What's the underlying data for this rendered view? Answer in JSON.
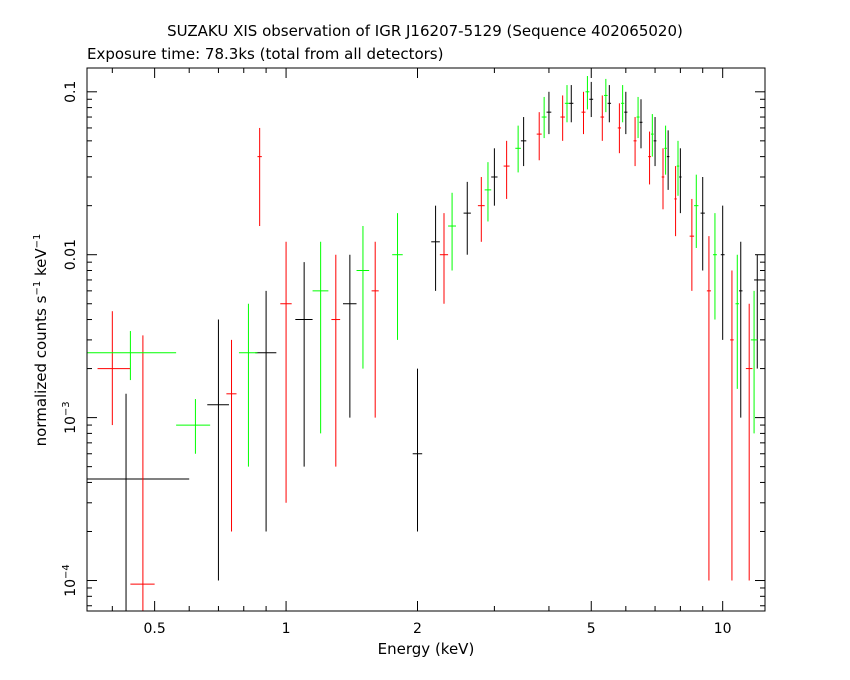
{
  "chart_data": {
    "type": "scatter",
    "title": "SUZAKU XIS observation of IGR J16207-5129 (Sequence 402065020)",
    "subtitle": "Exposure time: 78.3ks (total from all detectors)",
    "xlabel": "Energy (keV)",
    "ylabel": {
      "part1": "normalized counts s",
      "exp1": "−1",
      "part2": " keV",
      "exp2": "−1"
    },
    "xscale": "log",
    "yscale": "log",
    "xlim": [
      0.35,
      12.5
    ],
    "ylim": [
      6.5e-05,
      0.14
    ],
    "x_ticks": [
      {
        "value": 0.5,
        "label": "0.5"
      },
      {
        "value": 1,
        "label": "1"
      },
      {
        "value": 2,
        "label": "2"
      },
      {
        "value": 5,
        "label": "5"
      },
      {
        "value": 10,
        "label": "10"
      }
    ],
    "y_ticks": [
      {
        "value": 0.0001,
        "base": "10",
        "exp": "−4"
      },
      {
        "value": 0.001,
        "base": "10",
        "exp": "−3"
      },
      {
        "value": 0.01,
        "label": "0.01"
      },
      {
        "value": 0.1,
        "label": "0.1"
      }
    ],
    "grid": false,
    "legend": "none",
    "series": [
      {
        "color": "#000000",
        "points": [
          {
            "x": 0.43,
            "y": 0.00042,
            "xerr": [
              0.34,
              0.6
            ],
            "yerr": [
              4e-05,
              0.0014
            ]
          },
          {
            "x": 0.7,
            "y": 0.0012,
            "xerr": [
              0.66,
              0.74
            ],
            "yerr": [
              0.0001,
              0.004
            ]
          },
          {
            "x": 0.9,
            "y": 0.0025,
            "xerr": [
              0.85,
              0.95
            ],
            "yerr": [
              0.0002,
              0.006
            ]
          },
          {
            "x": 1.1,
            "y": 0.004,
            "xerr": [
              1.05,
              1.15
            ],
            "yerr": [
              0.0005,
              0.009
            ]
          },
          {
            "x": 1.4,
            "y": 0.005,
            "xerr": [
              1.35,
              1.45
            ],
            "yerr": [
              0.001,
              0.01
            ]
          },
          {
            "x": 2.0,
            "y": 0.0006,
            "xerr": [
              1.95,
              2.05
            ],
            "yerr": [
              0.0002,
              0.002
            ]
          },
          {
            "x": 2.2,
            "y": 0.012,
            "xerr": [
              2.15,
              2.25
            ],
            "yerr": [
              0.006,
              0.02
            ]
          },
          {
            "x": 2.6,
            "y": 0.018,
            "xerr": [
              2.55,
              2.65
            ],
            "yerr": [
              0.01,
              0.028
            ]
          },
          {
            "x": 3.0,
            "y": 0.03,
            "xerr": [
              2.95,
              3.05
            ],
            "yerr": [
              0.02,
              0.045
            ]
          },
          {
            "x": 3.5,
            "y": 0.05,
            "xerr": [
              3.45,
              3.55
            ],
            "yerr": [
              0.035,
              0.07
            ]
          },
          {
            "x": 4.0,
            "y": 0.075,
            "xerr": [
              3.95,
              4.05
            ],
            "yerr": [
              0.055,
              0.1
            ]
          },
          {
            "x": 4.5,
            "y": 0.085,
            "xerr": [
              4.45,
              4.55
            ],
            "yerr": [
              0.065,
              0.11
            ]
          },
          {
            "x": 5.0,
            "y": 0.09,
            "xerr": [
              4.95,
              5.05
            ],
            "yerr": [
              0.07,
              0.115
            ]
          },
          {
            "x": 5.5,
            "y": 0.085,
            "xerr": [
              5.45,
              5.55
            ],
            "yerr": [
              0.065,
              0.11
            ]
          },
          {
            "x": 6.0,
            "y": 0.075,
            "xerr": [
              5.95,
              6.05
            ],
            "yerr": [
              0.055,
              0.1
            ]
          },
          {
            "x": 6.5,
            "y": 0.065,
            "xerr": [
              6.45,
              6.55
            ],
            "yerr": [
              0.045,
              0.09
            ]
          },
          {
            "x": 7.0,
            "y": 0.05,
            "xerr": [
              6.95,
              7.05
            ],
            "yerr": [
              0.035,
              0.07
            ]
          },
          {
            "x": 7.5,
            "y": 0.04,
            "xerr": [
              7.45,
              7.55
            ],
            "yerr": [
              0.025,
              0.058
            ]
          },
          {
            "x": 8.0,
            "y": 0.03,
            "xerr": [
              7.95,
              8.05
            ],
            "yerr": [
              0.018,
              0.045
            ]
          },
          {
            "x": 9.0,
            "y": 0.018,
            "xerr": [
              8.9,
              9.1
            ],
            "yerr": [
              0.008,
              0.03
            ]
          },
          {
            "x": 10.0,
            "y": 0.01,
            "xerr": [
              9.9,
              10.1
            ],
            "yerr": [
              0.003,
              0.02
            ]
          },
          {
            "x": 11.0,
            "y": 0.006,
            "xerr": [
              10.9,
              11.1
            ],
            "yerr": [
              0.001,
              0.012
            ]
          },
          {
            "x": 12.0,
            "y": 0.007,
            "xerr": [
              11.8,
              12.2
            ],
            "yerr": [
              0.002,
              0.01
            ]
          }
        ]
      },
      {
        "color": "#ff0000",
        "points": [
          {
            "x": 0.4,
            "y": 0.002,
            "xerr": [
              0.37,
              0.44
            ],
            "yerr": [
              0.0009,
              0.0045
            ]
          },
          {
            "x": 0.47,
            "y": 9.5e-05,
            "xerr": [
              0.44,
              0.5
            ],
            "yerr": [
              4e-05,
              0.0032
            ]
          },
          {
            "x": 0.75,
            "y": 0.0014,
            "xerr": [
              0.73,
              0.77
            ],
            "yerr": [
              0.0002,
              0.003
            ]
          },
          {
            "x": 0.87,
            "y": 0.04,
            "xerr": [
              0.86,
              0.88
            ],
            "yerr": [
              0.015,
              0.06
            ]
          },
          {
            "x": 1.0,
            "y": 0.005,
            "xerr": [
              0.97,
              1.03
            ],
            "yerr": [
              0.0003,
              0.012
            ]
          },
          {
            "x": 1.3,
            "y": 0.004,
            "xerr": [
              1.27,
              1.33
            ],
            "yerr": [
              0.0005,
              0.01
            ]
          },
          {
            "x": 1.6,
            "y": 0.006,
            "xerr": [
              1.57,
              1.63
            ],
            "yerr": [
              0.001,
              0.012
            ]
          },
          {
            "x": 2.3,
            "y": 0.01,
            "xerr": [
              2.25,
              2.35
            ],
            "yerr": [
              0.005,
              0.018
            ]
          },
          {
            "x": 2.8,
            "y": 0.02,
            "xerr": [
              2.75,
              2.85
            ],
            "yerr": [
              0.012,
              0.03
            ]
          },
          {
            "x": 3.2,
            "y": 0.035,
            "xerr": [
              3.15,
              3.25
            ],
            "yerr": [
              0.022,
              0.05
            ]
          },
          {
            "x": 3.8,
            "y": 0.055,
            "xerr": [
              3.75,
              3.85
            ],
            "yerr": [
              0.038,
              0.075
            ]
          },
          {
            "x": 4.3,
            "y": 0.07,
            "xerr": [
              4.25,
              4.35
            ],
            "yerr": [
              0.05,
              0.095
            ]
          },
          {
            "x": 4.8,
            "y": 0.075,
            "xerr": [
              4.75,
              4.85
            ],
            "yerr": [
              0.055,
              0.1
            ]
          },
          {
            "x": 5.3,
            "y": 0.07,
            "xerr": [
              5.25,
              5.35
            ],
            "yerr": [
              0.05,
              0.095
            ]
          },
          {
            "x": 5.8,
            "y": 0.06,
            "xerr": [
              5.75,
              5.85
            ],
            "yerr": [
              0.042,
              0.085
            ]
          },
          {
            "x": 6.3,
            "y": 0.05,
            "xerr": [
              6.25,
              6.35
            ],
            "yerr": [
              0.035,
              0.07
            ]
          },
          {
            "x": 6.8,
            "y": 0.04,
            "xerr": [
              6.75,
              6.85
            ],
            "yerr": [
              0.027,
              0.057
            ]
          },
          {
            "x": 7.3,
            "y": 0.03,
            "xerr": [
              7.25,
              7.35
            ],
            "yerr": [
              0.019,
              0.045
            ]
          },
          {
            "x": 7.8,
            "y": 0.022,
            "xerr": [
              7.75,
              7.85
            ],
            "yerr": [
              0.013,
              0.035
            ]
          },
          {
            "x": 8.5,
            "y": 0.013,
            "xerr": [
              8.4,
              8.6
            ],
            "yerr": [
              0.006,
              0.022
            ]
          },
          {
            "x": 9.3,
            "y": 0.006,
            "xerr": [
              9.2,
              9.4
            ],
            "yerr": [
              0.0001,
              0.013
            ]
          },
          {
            "x": 10.5,
            "y": 0.003,
            "xerr": [
              10.4,
              10.6
            ],
            "yerr": [
              0.0001,
              0.008
            ]
          },
          {
            "x": 11.5,
            "y": 0.002,
            "xerr": [
              11.3,
              11.7
            ],
            "yerr": [
              0.0001,
              0.005
            ]
          }
        ]
      },
      {
        "color": "#00ff00",
        "points": [
          {
            "x": 0.44,
            "y": 0.0025,
            "xerr": [
              0.34,
              0.56
            ],
            "yerr": [
              0.0017,
              0.0034
            ]
          },
          {
            "x": 0.62,
            "y": 0.0009,
            "xerr": [
              0.56,
              0.67
            ],
            "yerr": [
              0.0006,
              0.0013
            ]
          },
          {
            "x": 0.82,
            "y": 0.0025,
            "xerr": [
              0.78,
              0.86
            ],
            "yerr": [
              0.0005,
              0.005
            ]
          },
          {
            "x": 1.2,
            "y": 0.006,
            "xerr": [
              1.15,
              1.25
            ],
            "yerr": [
              0.0008,
              0.012
            ]
          },
          {
            "x": 1.5,
            "y": 0.008,
            "xerr": [
              1.45,
              1.55
            ],
            "yerr": [
              0.002,
              0.015
            ]
          },
          {
            "x": 1.8,
            "y": 0.01,
            "xerr": [
              1.75,
              1.85
            ],
            "yerr": [
              0.003,
              0.018
            ]
          },
          {
            "x": 2.4,
            "y": 0.015,
            "xerr": [
              2.35,
              2.45
            ],
            "yerr": [
              0.008,
              0.024
            ]
          },
          {
            "x": 2.9,
            "y": 0.025,
            "xerr": [
              2.85,
              2.95
            ],
            "yerr": [
              0.016,
              0.037
            ]
          },
          {
            "x": 3.4,
            "y": 0.045,
            "xerr": [
              3.35,
              3.45
            ],
            "yerr": [
              0.032,
              0.062
            ]
          },
          {
            "x": 3.9,
            "y": 0.07,
            "xerr": [
              3.85,
              3.95
            ],
            "yerr": [
              0.052,
              0.093
            ]
          },
          {
            "x": 4.4,
            "y": 0.085,
            "xerr": [
              4.35,
              4.45
            ],
            "yerr": [
              0.065,
              0.11
            ]
          },
          {
            "x": 4.9,
            "y": 0.1,
            "xerr": [
              4.85,
              4.95
            ],
            "yerr": [
              0.078,
              0.125
            ]
          },
          {
            "x": 5.4,
            "y": 0.095,
            "xerr": [
              5.35,
              5.45
            ],
            "yerr": [
              0.075,
              0.12
            ]
          },
          {
            "x": 5.9,
            "y": 0.085,
            "xerr": [
              5.85,
              5.95
            ],
            "yerr": [
              0.065,
              0.11
            ]
          },
          {
            "x": 6.4,
            "y": 0.07,
            "xerr": [
              6.35,
              6.45
            ],
            "yerr": [
              0.052,
              0.093
            ]
          },
          {
            "x": 6.9,
            "y": 0.055,
            "xerr": [
              6.85,
              6.95
            ],
            "yerr": [
              0.04,
              0.073
            ]
          },
          {
            "x": 7.4,
            "y": 0.045,
            "xerr": [
              7.35,
              7.45
            ],
            "yerr": [
              0.031,
              0.062
            ]
          },
          {
            "x": 7.9,
            "y": 0.035,
            "xerr": [
              7.85,
              7.95
            ],
            "yerr": [
              0.023,
              0.05
            ]
          },
          {
            "x": 8.7,
            "y": 0.02,
            "xerr": [
              8.6,
              8.8
            ],
            "yerr": [
              0.011,
              0.031
            ]
          },
          {
            "x": 9.6,
            "y": 0.01,
            "xerr": [
              9.5,
              9.7
            ],
            "yerr": [
              0.004,
              0.018
            ]
          },
          {
            "x": 10.8,
            "y": 0.005,
            "xerr": [
              10.7,
              10.9
            ],
            "yerr": [
              0.0015,
              0.01
            ]
          },
          {
            "x": 11.8,
            "y": 0.003,
            "xerr": [
              11.6,
              12.0
            ],
            "yerr": [
              0.0008,
              0.006
            ]
          }
        ]
      }
    ]
  }
}
